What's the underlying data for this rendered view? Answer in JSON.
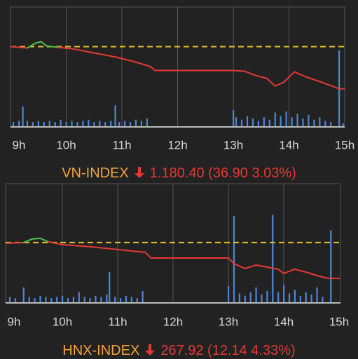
{
  "chart_data": [
    {
      "type": "line",
      "title": "VN-INDEX",
      "value_text": "1.180.40 (36.90 3.03%)",
      "xlim": [
        9,
        15
      ],
      "xticks": [
        {
          "value": 9,
          "label": "9h"
        },
        {
          "value": 10,
          "label": "10h"
        },
        {
          "value": 11,
          "label": "11h"
        },
        {
          "value": 12,
          "label": "12h"
        },
        {
          "value": 13,
          "label": "13h"
        },
        {
          "value": 14,
          "label": "14h"
        },
        {
          "value": 15,
          "label": "15h"
        }
      ],
      "ylim": [
        1147,
        1252
      ],
      "y2lim": [
        0,
        100
      ],
      "grid": true,
      "reference": 1217.3,
      "reference_color": "#e6c02a",
      "series": [
        {
          "color": "#e53935",
          "up_color": "#4cc34c",
          "x": [
            9.0,
            9.3,
            9.45,
            9.55,
            9.65,
            9.85,
            10.1,
            10.5,
            10.9,
            11.2,
            11.5,
            11.6,
            13.0,
            13.2,
            13.4,
            13.6,
            13.75,
            13.9,
            14.1,
            14.3,
            14.6,
            14.9,
            15.0
          ],
          "values": [
            1217.3,
            1216.1,
            1220.4,
            1221.6,
            1217.9,
            1216.7,
            1215.5,
            1211.8,
            1208.1,
            1204.4,
            1200.1,
            1196.4,
            1196.4,
            1195.8,
            1192.1,
            1189.6,
            1182.9,
            1185.9,
            1195.2,
            1190.9,
            1185.9,
            1180.4,
            1180.4
          ]
        },
        {
          "type": "bar",
          "axis": "y2",
          "color": "#4f86d9",
          "x": [
            9.05,
            9.15,
            9.22,
            9.3,
            9.4,
            9.5,
            9.6,
            9.7,
            9.8,
            9.9,
            10.0,
            10.1,
            10.2,
            10.3,
            10.4,
            10.5,
            10.6,
            10.7,
            10.8,
            10.88,
            10.95,
            11.05,
            11.15,
            11.25,
            11.35,
            11.45,
            13.0,
            13.05,
            13.15,
            13.25,
            13.35,
            13.45,
            13.55,
            13.65,
            13.75,
            13.85,
            13.95,
            14.05,
            14.15,
            14.25,
            14.35,
            14.45,
            14.55,
            14.65,
            14.75,
            14.9,
            14.97
          ],
          "values": [
            4,
            5,
            17,
            5,
            4,
            5,
            4,
            5,
            4,
            6,
            4,
            5,
            4,
            5,
            6,
            4,
            5,
            4,
            5,
            18,
            4,
            5,
            4,
            6,
            5,
            7,
            14,
            8,
            6,
            9,
            7,
            5,
            8,
            6,
            12,
            9,
            13,
            8,
            11,
            7,
            10,
            6,
            8,
            5,
            4,
            64,
            3
          ]
        }
      ]
    },
    {
      "type": "line",
      "title": "HNX-INDEX",
      "value_text": "267.92 (12.14 4.33%)",
      "xlim": [
        9,
        15
      ],
      "xticks": [
        {
          "value": 9,
          "label": "9h"
        },
        {
          "value": 10,
          "label": "10h"
        },
        {
          "value": 11,
          "label": "11h"
        },
        {
          "value": 12,
          "label": "12h"
        },
        {
          "value": 13,
          "label": "13h"
        },
        {
          "value": 14,
          "label": "14h"
        },
        {
          "value": 15,
          "label": "15h"
        }
      ],
      "ylim": [
        259.6,
        300
      ],
      "y2lim": [
        0,
        100
      ],
      "grid": true,
      "reference": 280.06,
      "reference_color": "#e6c02a",
      "series": [
        {
          "color": "#e53935",
          "up_color": "#4cc34c",
          "x": [
            9.0,
            9.3,
            9.45,
            9.6,
            9.75,
            10.0,
            10.5,
            11.0,
            11.5,
            11.6,
            13.0,
            13.1,
            13.3,
            13.5,
            13.7,
            13.9,
            14.0,
            14.2,
            14.4,
            14.6,
            14.8,
            15.0
          ],
          "values": [
            279.82,
            280.06,
            281.25,
            281.49,
            280.3,
            279.35,
            278.63,
            277.68,
            276.73,
            274.82,
            274.82,
            272.92,
            271.25,
            272.44,
            271.73,
            271.02,
            269.59,
            271.02,
            270.06,
            268.87,
            267.92,
            267.92
          ]
        },
        {
          "type": "bar",
          "axis": "y2",
          "color": "#4f86d9",
          "x": [
            9.05,
            9.15,
            9.3,
            9.4,
            9.5,
            9.6,
            9.7,
            9.8,
            9.9,
            10.0,
            10.1,
            10.2,
            10.3,
            10.4,
            10.5,
            10.6,
            10.7,
            10.8,
            10.85,
            10.95,
            11.05,
            11.15,
            11.25,
            11.35,
            11.45,
            13.0,
            13.1,
            13.2,
            13.3,
            13.4,
            13.5,
            13.6,
            13.7,
            13.8,
            13.9,
            14.0,
            14.1,
            14.2,
            14.3,
            14.4,
            14.5,
            14.6,
            14.7,
            14.85
          ],
          "values": [
            5,
            4,
            13,
            5,
            4,
            6,
            5,
            4,
            5,
            6,
            4,
            5,
            9,
            5,
            4,
            6,
            5,
            7,
            26,
            5,
            4,
            6,
            5,
            4,
            10,
            14,
            73,
            8,
            6,
            9,
            13,
            7,
            10,
            74,
            9,
            15,
            8,
            11,
            6,
            9,
            7,
            13,
            5,
            61
          ]
        }
      ]
    }
  ]
}
